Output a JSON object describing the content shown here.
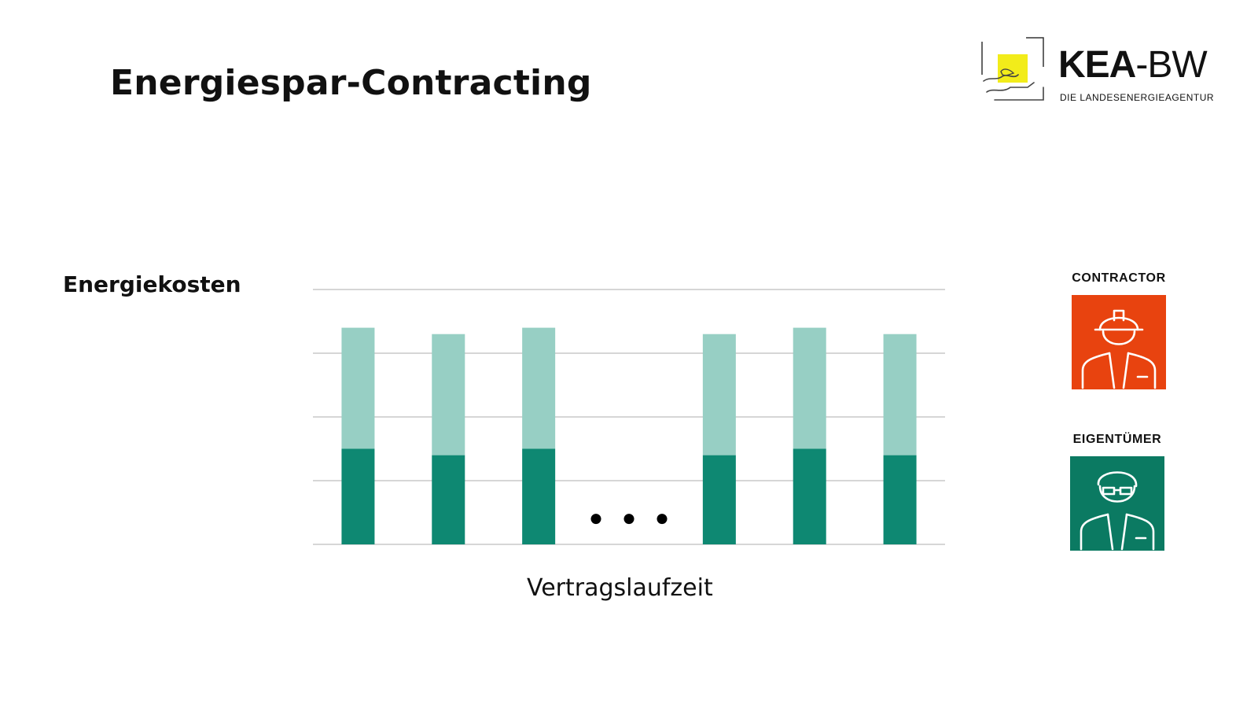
{
  "header": {
    "title": "Energiespar-Contracting"
  },
  "logo": {
    "brand_bold": "KEA",
    "brand_rest": "-BW",
    "subtitle": "DIE LANDESENERGIEAGENTUR",
    "accent_color": "#f2ec1a"
  },
  "chart_data": {
    "type": "bar",
    "stacked": true,
    "ylabel": "Energiekosten",
    "xlabel": "Vertragslaufzeit",
    "categories": [
      "",
      "",
      "",
      "…",
      "",
      "",
      ""
    ],
    "ylim": [
      0,
      4
    ],
    "grid": true,
    "gridlines": [
      0,
      1,
      2,
      3,
      4
    ],
    "ellipsis_after_index": 2,
    "series": [
      {
        "values": [
          1.5,
          1.4,
          1.5,
          null,
          1.4,
          1.5,
          1.4
        ],
        "color": "#0e8872"
      },
      {
        "values": [
          1.9,
          1.9,
          1.9,
          null,
          1.9,
          1.9,
          1.9
        ],
        "color": "#97cfc4"
      }
    ],
    "legend_position": "right"
  },
  "roles": {
    "contractor": {
      "label": "CONTRACTOR",
      "color": "#e8430f",
      "icon": "worker-helmet-icon"
    },
    "owner": {
      "label": "EIGENTÜMER",
      "color": "#0b7a62",
      "icon": "owner-person-icon"
    }
  }
}
